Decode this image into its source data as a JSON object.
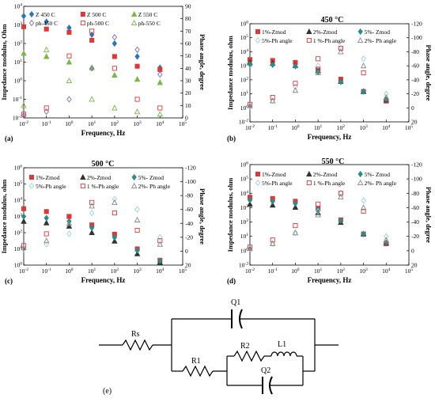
{
  "panels": [
    {
      "key": "a",
      "label": "(a)",
      "title": "",
      "ylabel": "Impedance modulus, Ohm",
      "y2label": "Phase angle, degree",
      "xlabel": "Frequency, Hz",
      "legend": [
        "Z 450 C",
        "Z 500 C",
        "Z 550 C",
        "ph-450 C",
        "ph-500 C",
        "ph-550 C"
      ]
    },
    {
      "key": "b",
      "label": "(b)",
      "title": "450 °C",
      "ylabel": "Impedance modulus, ohm",
      "y2label": "Phase angle, degree",
      "xlabel": "Frequency, Hz",
      "legend": [
        "1%-Zmod",
        "2%-Zmod",
        "5%- Zmod",
        "5%-Ph angle",
        "1 %-Ph angle",
        "2%- Ph angle"
      ]
    },
    {
      "key": "c",
      "label": "(c)",
      "title": "500 °C",
      "ylabel": "Impedance modulus, ohm",
      "y2label": "Phase angle, degree",
      "xlabel": "Frequency, Hz",
      "legend": [
        "1%-Zmod",
        "2%-Zmod",
        "5%- Zmod",
        "5%-Ph angle",
        "1 %-Ph angle",
        "2%- Ph angle"
      ]
    },
    {
      "key": "d",
      "label": "(d)",
      "title": "550 °C",
      "ylabel": "Impedance modulus, ohm",
      "y2label": "Phase angle, degree",
      "xlabel": "Frequency, Hz",
      "legend": [
        "1%-Zmod",
        "2%-Zmod",
        "5%- Zmod",
        "5%-Ph angle",
        "1 %-Ph angle",
        "2%- Ph angle"
      ]
    }
  ],
  "circuit": {
    "label": "(e)",
    "components": [
      "Rs",
      "R1",
      "R2",
      "L1",
      "Q1",
      "Q2"
    ]
  },
  "chart_data": [
    {
      "type": "scatter",
      "panel": "a",
      "xscale": "log",
      "xlim": [
        0.01,
        100000
      ],
      "yscale": "log",
      "ylim": [
        0.01,
        10000
      ],
      "y2lim": [
        0,
        90
      ],
      "xticks": [
        "10-2",
        "10-1",
        "100",
        "101",
        "102",
        "103",
        "104",
        "105"
      ],
      "yticks": [
        "10-2",
        "10-1",
        "100",
        "101",
        "102",
        "103",
        "104"
      ],
      "y2ticks": [
        "0",
        "10",
        "20",
        "30",
        "40",
        "50",
        "60",
        "70",
        "80",
        "90"
      ],
      "series": [
        {
          "name": "Z 450 C",
          "axis": "left",
          "color": "#2e75b6",
          "marker": "diamond",
          "x": [
            0.01,
            0.1,
            1,
            10,
            100,
            1000,
            10000
          ],
          "y": [
            3000,
            1500,
            700,
            300,
            100,
            20,
            5
          ]
        },
        {
          "name": "Z 500 C",
          "axis": "left",
          "color": "#d93a3a",
          "marker": "square",
          "x": [
            0.01,
            0.1,
            1,
            10,
            100,
            1000,
            10000
          ],
          "y": [
            800,
            600,
            400,
            150,
            20,
            6,
            4
          ]
        },
        {
          "name": "Z 550 C",
          "axis": "left",
          "color": "#7ab648",
          "marker": "triangle",
          "x": [
            0.01,
            0.1,
            1,
            10,
            100,
            1000,
            10000
          ],
          "y": [
            30,
            20,
            10,
            5,
            2,
            1.2,
            0.8
          ]
        },
        {
          "name": "ph-450 C",
          "axis": "right",
          "color": "#7e6bb3",
          "marker": "diamond-open",
          "x": [
            0.01,
            0.1,
            1,
            10,
            100,
            1000,
            10000
          ],
          "y": [
            2,
            5,
            15,
            40,
            65,
            55,
            35
          ]
        },
        {
          "name": "ph-500 C",
          "axis": "right",
          "color": "#d93a3a",
          "marker": "square-open",
          "x": [
            0.01,
            0.1,
            1,
            10,
            100,
            1000,
            10000
          ],
          "y": [
            3,
            8,
            50,
            70,
            40,
            15,
            8
          ]
        },
        {
          "name": "ph-550 C",
          "axis": "right",
          "color": "#7ab648",
          "marker": "triangle-open",
          "x": [
            0.01,
            0.1,
            1,
            10,
            100,
            1000,
            10000
          ],
          "y": [
            10,
            55,
            30,
            15,
            8,
            5,
            3
          ]
        }
      ]
    },
    {
      "type": "scatter",
      "panel": "b",
      "xscale": "log",
      "xlim": [
        0.01,
        100000
      ],
      "yscale": "log",
      "ylim": [
        0.01,
        1000000
      ],
      "y2lim": [
        20,
        -120
      ],
      "xticks": [
        "10-2",
        "10-1",
        "100",
        "101",
        "102",
        "103",
        "104",
        "105"
      ],
      "yticks": [
        "10-2",
        "100",
        "101",
        "102",
        "103",
        "104",
        "105",
        "106"
      ],
      "y2ticks": [
        "-120",
        "-100",
        "-80",
        "-60",
        "-40",
        "-20",
        "0",
        "20"
      ],
      "series": [
        {
          "name": "1%-Zmod",
          "axis": "left",
          "color": "#d93a3a",
          "marker": "square",
          "x": [
            0.01,
            0.1,
            1,
            10,
            100,
            1000,
            10000
          ],
          "y": [
            1200,
            1000,
            700,
            200,
            30,
            3,
            0.5
          ]
        },
        {
          "name": "2%-Zmod",
          "axis": "left",
          "color": "#333333",
          "marker": "triangle",
          "x": [
            0.01,
            0.1,
            1,
            10,
            100,
            1000,
            10000
          ],
          "y": [
            700,
            600,
            400,
            150,
            20,
            3,
            0.6
          ]
        },
        {
          "name": "5%- Zmod",
          "axis": "left",
          "color": "#2e8b8b",
          "marker": "diamond",
          "x": [
            0.01,
            0.1,
            1,
            10,
            100,
            1000,
            10000
          ],
          "y": [
            500,
            450,
            350,
            120,
            18,
            3,
            0.7
          ]
        },
        {
          "name": "5%-Ph angle",
          "axis": "right",
          "color": "#9ecfd6",
          "marker": "diamond-open",
          "x": [
            0.01,
            0.1,
            1,
            10,
            100,
            1000,
            10000
          ],
          "y": [
            -2,
            -10,
            -30,
            -60,
            -85,
            -70,
            -20
          ]
        },
        {
          "name": "1 %-Ph angle",
          "axis": "right",
          "color": "#d93a3a",
          "marker": "square-open",
          "x": [
            0.01,
            0.1,
            1,
            10,
            100,
            1000,
            10000
          ],
          "y": [
            -5,
            -15,
            -35,
            -70,
            -85,
            -50,
            -10
          ]
        },
        {
          "name": "2%- Ph angle",
          "axis": "right",
          "color": "#888888",
          "marker": "triangle-open",
          "x": [
            0.01,
            0.1,
            1,
            10,
            100,
            1000,
            10000
          ],
          "y": [
            -3,
            -10,
            -25,
            -50,
            -80,
            -60,
            -15
          ]
        }
      ]
    },
    {
      "type": "scatter",
      "panel": "c",
      "xscale": "log",
      "xlim": [
        0.01,
        100000
      ],
      "yscale": "log",
      "ylim": [
        1,
        1000000
      ],
      "y2lim": [
        20,
        -120
      ],
      "xticks": [
        "10-2",
        "10-1",
        "100",
        "101",
        "102",
        "103",
        "104",
        "105"
      ],
      "yticks": [
        "100",
        "101",
        "102",
        "103",
        "104",
        "105",
        "106"
      ],
      "y2ticks": [
        "-120",
        "-100",
        "-80",
        "-60",
        "-40",
        "-20",
        "0",
        "20"
      ],
      "series": [
        {
          "name": "1%-Zmod",
          "axis": "left",
          "color": "#d93a3a",
          "marker": "square",
          "x": [
            0.01,
            0.1,
            1,
            10,
            100,
            1000,
            10000
          ],
          "y": [
            3000,
            2000,
            1000,
            300,
            80,
            10,
            2
          ]
        },
        {
          "name": "2%-Zmod",
          "axis": "left",
          "color": "#333333",
          "marker": "triangle",
          "x": [
            0.01,
            0.1,
            1,
            10,
            100,
            1000,
            10000
          ],
          "y": [
            500,
            400,
            250,
            100,
            30,
            5,
            1.5
          ]
        },
        {
          "name": "5%- Zmod",
          "axis": "left",
          "color": "#2e8b8b",
          "marker": "diamond",
          "x": [
            0.01,
            0.1,
            1,
            10,
            100,
            1000,
            10000
          ],
          "y": [
            1000,
            800,
            500,
            200,
            50,
            8,
            1.8
          ]
        },
        {
          "name": "5%-Ph angle",
          "axis": "right",
          "color": "#9ecfd6",
          "marker": "diamond-open",
          "x": [
            0.01,
            0.1,
            1,
            10,
            100,
            1000,
            10000
          ],
          "y": [
            -3,
            -10,
            -25,
            -55,
            -75,
            -60,
            -20
          ]
        },
        {
          "name": "1 %-Ph angle",
          "axis": "right",
          "color": "#d93a3a",
          "marker": "square-open",
          "x": [
            0.01,
            0.1,
            1,
            10,
            100,
            1000,
            10000
          ],
          "y": [
            -8,
            -25,
            -50,
            -70,
            -55,
            -30,
            -15
          ]
        },
        {
          "name": "2%- Ph angle",
          "axis": "right",
          "color": "#888888",
          "marker": "triangle-open",
          "x": [
            0.01,
            0.1,
            1,
            10,
            100,
            1000,
            10000
          ],
          "y": [
            -5,
            -15,
            -40,
            -65,
            -70,
            -45,
            -10
          ]
        }
      ]
    },
    {
      "type": "scatter",
      "panel": "d",
      "xscale": "log",
      "xlim": [
        0.01,
        100000
      ],
      "yscale": "log",
      "ylim": [
        0.01,
        1000000
      ],
      "y2lim": [
        20,
        -120
      ],
      "xticks": [
        "10-2",
        "10-1",
        "100",
        "101",
        "102",
        "103",
        "104",
        "105"
      ],
      "yticks": [
        "10-2",
        "100",
        "101",
        "102",
        "103",
        "104",
        "105",
        "106"
      ],
      "y2ticks": [
        "-120",
        "-100",
        "-80",
        "-60",
        "-40",
        "-20",
        "0",
        "20"
      ],
      "series": [
        {
          "name": "1%-Zmod",
          "axis": "left",
          "color": "#d93a3a",
          "marker": "square",
          "x": [
            0.01,
            0.1,
            1,
            10,
            100,
            1000,
            10000
          ],
          "y": [
            2500,
            2000,
            1200,
            300,
            40,
            3,
            0.5
          ]
        },
        {
          "name": "2%-Zmod",
          "axis": "left",
          "color": "#333333",
          "marker": "triangle",
          "x": [
            0.01,
            0.1,
            1,
            10,
            100,
            1000,
            10000
          ],
          "y": [
            700,
            600,
            400,
            150,
            25,
            3,
            0.6
          ]
        },
        {
          "name": "5%- Zmod",
          "axis": "left",
          "color": "#2e8b8b",
          "marker": "diamond",
          "x": [
            0.01,
            0.1,
            1,
            10,
            100,
            1000,
            10000
          ],
          "y": [
            1500,
            1200,
            800,
            250,
            35,
            3,
            0.6
          ]
        },
        {
          "name": "5%-Ph angle",
          "axis": "right",
          "color": "#9ecfd6",
          "marker": "diamond-open",
          "x": [
            0.01,
            0.1,
            1,
            10,
            100,
            1000,
            10000
          ],
          "y": [
            -3,
            -10,
            -25,
            -55,
            -80,
            -70,
            -20
          ]
        },
        {
          "name": "1 %-Ph angle",
          "axis": "right",
          "color": "#d93a3a",
          "marker": "square-open",
          "x": [
            0.01,
            0.1,
            1,
            10,
            100,
            1000,
            10000
          ],
          "y": [
            -5,
            -15,
            -35,
            -65,
            -80,
            -55,
            -10
          ]
        },
        {
          "name": "2%- Ph angle",
          "axis": "right",
          "color": "#888888",
          "marker": "triangle-open",
          "x": [
            0.01,
            0.1,
            1,
            10,
            100,
            1000,
            10000
          ],
          "y": [
            -3,
            -10,
            -25,
            -50,
            -75,
            -60,
            -15
          ]
        }
      ]
    }
  ]
}
